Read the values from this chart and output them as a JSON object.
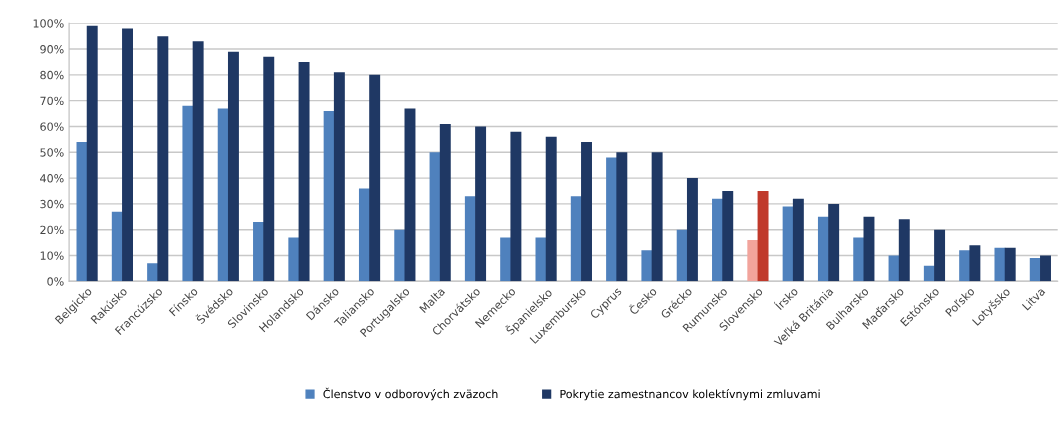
{
  "chart_data": {
    "type": "bar",
    "categories": [
      "Belgicko",
      "Rakúsko",
      "Francúzsko",
      "Fínsko",
      "Švédsko",
      "Slovinsko",
      "Holandsko",
      "Dánsko",
      "Taliansko",
      "Portugalsko",
      "Malta",
      "Chorvátsko",
      "Nemecko",
      "Španielsko",
      "Luxembursko",
      "Cyprus",
      "Česko",
      "Grécko",
      "Rumunsko",
      "Slovensko",
      "Írsko",
      "Veľká Británia",
      "Bulharsko",
      "Maďarsko",
      "Estónsko",
      "Poľsko",
      "Lotyšsko",
      "Litva"
    ],
    "series": [
      {
        "name": "Členstvo v odborových zväzoch",
        "color": "#4f81bd",
        "colors": [
          "#4f81bd",
          "#4f81bd",
          "#4f81bd",
          "#4f81bd",
          "#4f81bd",
          "#4f81bd",
          "#4f81bd",
          "#4f81bd",
          "#4f81bd",
          "#4f81bd",
          "#4f81bd",
          "#4f81bd",
          "#4f81bd",
          "#4f81bd",
          "#4f81bd",
          "#4f81bd",
          "#4f81bd",
          "#4f81bd",
          "#4f81bd",
          "#f2a49c",
          "#4f81bd",
          "#4f81bd",
          "#4f81bd",
          "#4f81bd",
          "#4f81bd",
          "#4f81bd",
          "#4f81bd",
          "#4f81bd"
        ],
        "values": [
          54,
          27,
          7,
          68,
          67,
          23,
          17,
          66,
          36,
          20,
          50,
          33,
          17,
          17,
          33,
          48,
          12,
          20,
          32,
          16,
          29,
          25,
          17,
          10,
          6,
          12,
          13,
          9
        ]
      },
      {
        "name": "Pokrytie zamestnancov kolektívnymi zmluvami",
        "color": "#1f3864",
        "colors": [
          "#1f3864",
          "#1f3864",
          "#1f3864",
          "#1f3864",
          "#1f3864",
          "#1f3864",
          "#1f3864",
          "#1f3864",
          "#1f3864",
          "#1f3864",
          "#1f3864",
          "#1f3864",
          "#1f3864",
          "#1f3864",
          "#1f3864",
          "#1f3864",
          "#1f3864",
          "#1f3864",
          "#1f3864",
          "#c0392b",
          "#1f3864",
          "#1f3864",
          "#1f3864",
          "#1f3864",
          "#1f3864",
          "#1f3864",
          "#1f3864",
          "#1f3864"
        ],
        "values": [
          99,
          98,
          95,
          93,
          89,
          87,
          85,
          81,
          80,
          67,
          61,
          60,
          58,
          56,
          54,
          50,
          50,
          40,
          35,
          35,
          32,
          30,
          25,
          24,
          20,
          14,
          13,
          10
        ]
      }
    ],
    "ylim": [
      0,
      100
    ],
    "yticks": [
      {
        "value": 0,
        "label": "0%"
      },
      {
        "value": 10,
        "label": "10%"
      },
      {
        "value": 20,
        "label": "20%"
      },
      {
        "value": 30,
        "label": "30%"
      },
      {
        "value": 40,
        "label": "40%"
      },
      {
        "value": 50,
        "label": "50%"
      },
      {
        "value": 60,
        "label": "60%"
      },
      {
        "value": 70,
        "label": "70%"
      },
      {
        "value": 80,
        "label": "80%"
      },
      {
        "value": 90,
        "label": "90%"
      },
      {
        "value": 100,
        "label": "100%"
      }
    ],
    "grid": "y",
    "legend": "bottom"
  }
}
